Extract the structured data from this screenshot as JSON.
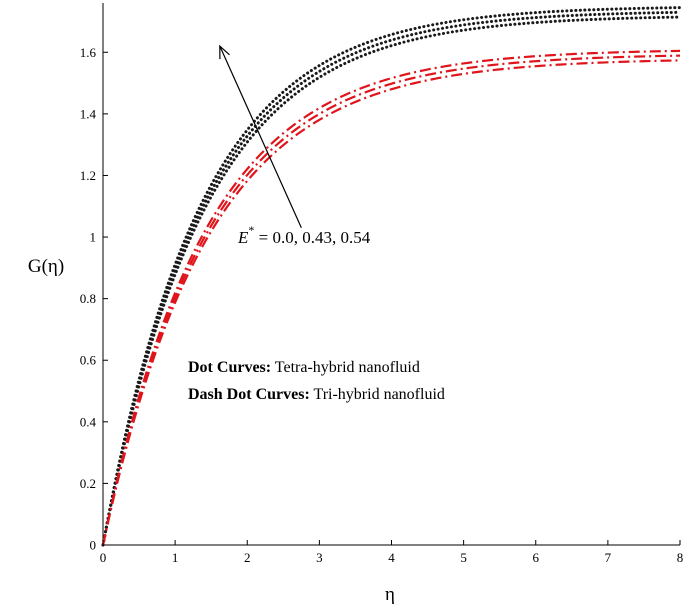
{
  "chart_data": {
    "type": "line",
    "xlabel": "η",
    "ylabel": "G(η)",
    "xlim": [
      0,
      8
    ],
    "ylim": [
      0,
      1.76
    ],
    "xticks": [
      0,
      1,
      2,
      3,
      4,
      5,
      6,
      7,
      8
    ],
    "yticks": [
      "0",
      "0.2",
      "0.4",
      "0.6",
      "0.8",
      "1",
      "1.2",
      "1.4",
      "1.6"
    ],
    "grid": false,
    "legend_placement": "center",
    "legend": [
      {
        "bold": "Dot Curves:",
        "text": " Tetra-hybrid nanofluid"
      },
      {
        "bold": "Dash Dot Curves:",
        "text": " Tri-hybrid nanofluid"
      }
    ],
    "annotation": {
      "symbol": "E",
      "superscript": "*",
      "text": " = 0.0, 0.43, 0.54",
      "arrow_from": [
        2.75,
        1.03
      ],
      "arrow_to": [
        1.62,
        1.62
      ]
    },
    "series": [
      {
        "group": "Tetra-hybrid nanofluid",
        "style": "dot",
        "color": "#1a1a1a",
        "asymptote": 1.72,
        "rate": 0.715
      },
      {
        "group": "Tetra-hybrid nanofluid",
        "style": "dot",
        "color": "#1a1a1a",
        "asymptote": 1.735,
        "rate": 0.725
      },
      {
        "group": "Tetra-hybrid nanofluid",
        "style": "dot",
        "color": "#1a1a1a",
        "asymptote": 1.75,
        "rate": 0.735
      },
      {
        "group": "Tri-hybrid nanofluid",
        "style": "dashdot",
        "color": "#e0141b",
        "asymptote": 1.58,
        "rate": 0.69
      },
      {
        "group": "Tri-hybrid nanofluid",
        "style": "dashdot",
        "color": "#e0141b",
        "asymptote": 1.595,
        "rate": 0.7
      },
      {
        "group": "Tri-hybrid nanofluid",
        "style": "dashdot",
        "color": "#e0141b",
        "asymptote": 1.61,
        "rate": 0.71
      }
    ]
  }
}
